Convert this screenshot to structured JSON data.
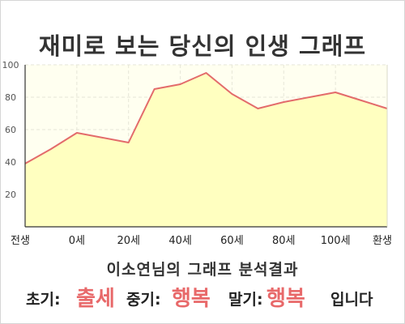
{
  "title": "재미로 보는 당신의 인생 그래프",
  "chart_data": {
    "type": "area",
    "title": "재미로 보는 당신의 인생 그래프",
    "x_tick_labels": [
      "전생",
      "0세",
      "20세",
      "40세",
      "60세",
      "80세",
      "100세",
      "환생"
    ],
    "y_ticks": [
      20,
      40,
      60,
      80,
      100
    ],
    "ylim": [
      0,
      100
    ],
    "grid": true,
    "series": [
      {
        "values": [
          39,
          48,
          58,
          55,
          52,
          85,
          88,
          95,
          82,
          73,
          77,
          80,
          83,
          78,
          73
        ]
      }
    ],
    "colors": {
      "line": "#e36b6b",
      "fill": "#ffffc0",
      "plot_bg": "#fffff0",
      "grid": "#e6e6d8"
    }
  },
  "result": {
    "heading": "이소연님의 그래프 분석결과",
    "early_label": "초기:",
    "early_value": "출세",
    "middle_label": "중기:",
    "middle_value": "행복",
    "late_label": "말기:",
    "late_value": "행복",
    "ending": "입니다"
  }
}
